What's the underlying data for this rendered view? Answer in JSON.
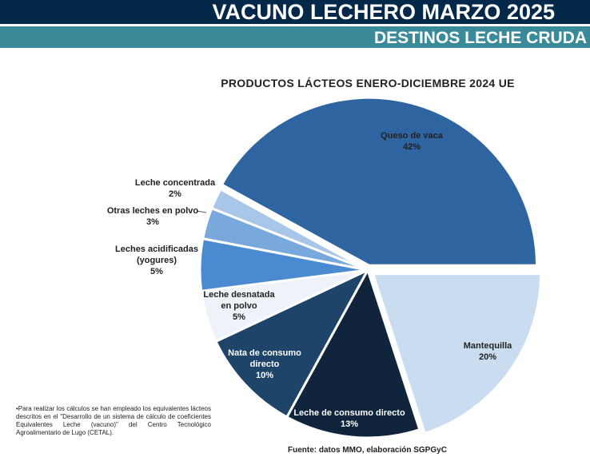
{
  "header": {
    "title": "VACUNO LECHERO MARZO 2025",
    "subtitle": "DESTINOS LECHE CRUDA"
  },
  "chart_data": {
    "type": "pie",
    "title": "PRODUCTOS  LÁCTEOS ENERO-DICIEMBRE  2024 UE",
    "slices": [
      {
        "label": "Mantequilla",
        "value": 20,
        "pct": "20%",
        "color": "#c9dcf0"
      },
      {
        "label": "Leche de consumo directo",
        "value": 13,
        "pct": "13%",
        "color": "#10243b"
      },
      {
        "label": "Nata de consumo directo",
        "value": 10,
        "pct": "10%",
        "color": "#1f4469"
      },
      {
        "label": "Leche desnatada en polvo",
        "value": 5,
        "pct": "5%",
        "color": "#eef3f9"
      },
      {
        "label": "Leches acidificadas (yogures)",
        "value": 5,
        "pct": "5%",
        "color": "#4a8ad0"
      },
      {
        "label": "Otras leches en polvo",
        "value": 3,
        "pct": "3%",
        "color": "#78a8dc"
      },
      {
        "label": "Leche concentrada",
        "value": 2,
        "pct": "2%",
        "color": "#a7c6e8"
      },
      {
        "label": "Queso de vaca",
        "value": 42,
        "pct": "42%",
        "color": "#2e65a0"
      }
    ]
  },
  "labels": {
    "queso": [
      "Queso de vaca",
      "42%"
    ],
    "mant": [
      "Mantequilla",
      "20%"
    ],
    "lcd": [
      "Leche de consumo directo",
      "13%"
    ],
    "nata": [
      "Nata de consumo",
      "directo",
      "10%"
    ],
    "desn": [
      "Leche desnatada",
      "en polvo",
      "5%"
    ],
    "acid": [
      "Leches acidificadas",
      "(yogures)",
      "5%"
    ],
    "otras": [
      "Otras leches en polvo",
      "3%"
    ],
    "conc": [
      "Leche concentrada",
      "2%"
    ]
  },
  "footnote": "•Para realizar los cálculos se han empleado los equivalentes lácteos descritos en el \"Desarrollo de un sistema de cálculo de coeficientes Equivalentes Leche (vacuno)\" del Centro Tecnológico Agroalimentario de Lugo (CETAL).",
  "source": "Fuente: datos MMO, elaboración SGPGyC"
}
